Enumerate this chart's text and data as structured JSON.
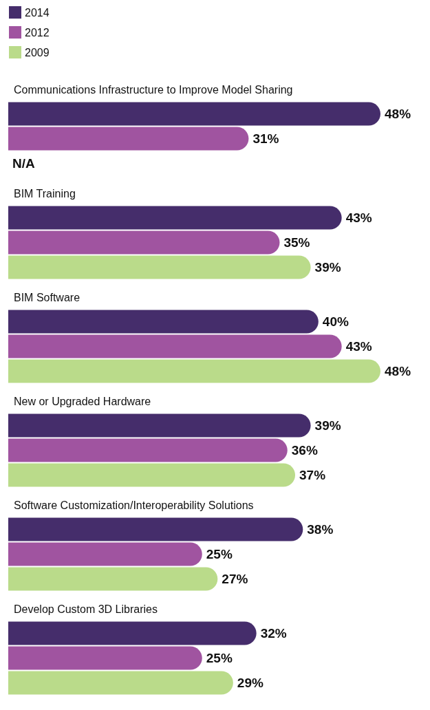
{
  "chart_data": {
    "type": "bar",
    "orientation": "horizontal",
    "legend": "top left",
    "categories": [
      "Communications Infrastructure to Improve Model Sharing",
      "BIM Training",
      "BIM Software",
      "New or Upgraded Hardware",
      "Software Customization/Interoperability Solutions",
      "Develop Custom 3D Libraries"
    ],
    "series": [
      {
        "name": "2014",
        "color": "#452d6b",
        "values": [
          48,
          43,
          40,
          39,
          38,
          32
        ],
        "value_labels": [
          "48%",
          "43%",
          "40%",
          "39%",
          "38%",
          "32%"
        ]
      },
      {
        "name": "2012",
        "color": "#a054a0",
        "values": [
          31,
          35,
          43,
          36,
          25,
          25
        ],
        "value_labels": [
          "31%",
          "35%",
          "43%",
          "36%",
          "25%",
          "25%"
        ]
      },
      {
        "name": "2009",
        "color": "#badb8a",
        "values": [
          null,
          39,
          48,
          37,
          27,
          29
        ],
        "value_labels": [
          "N/A",
          "39%",
          "48%",
          "37%",
          "27%",
          "29%"
        ]
      }
    ]
  }
}
